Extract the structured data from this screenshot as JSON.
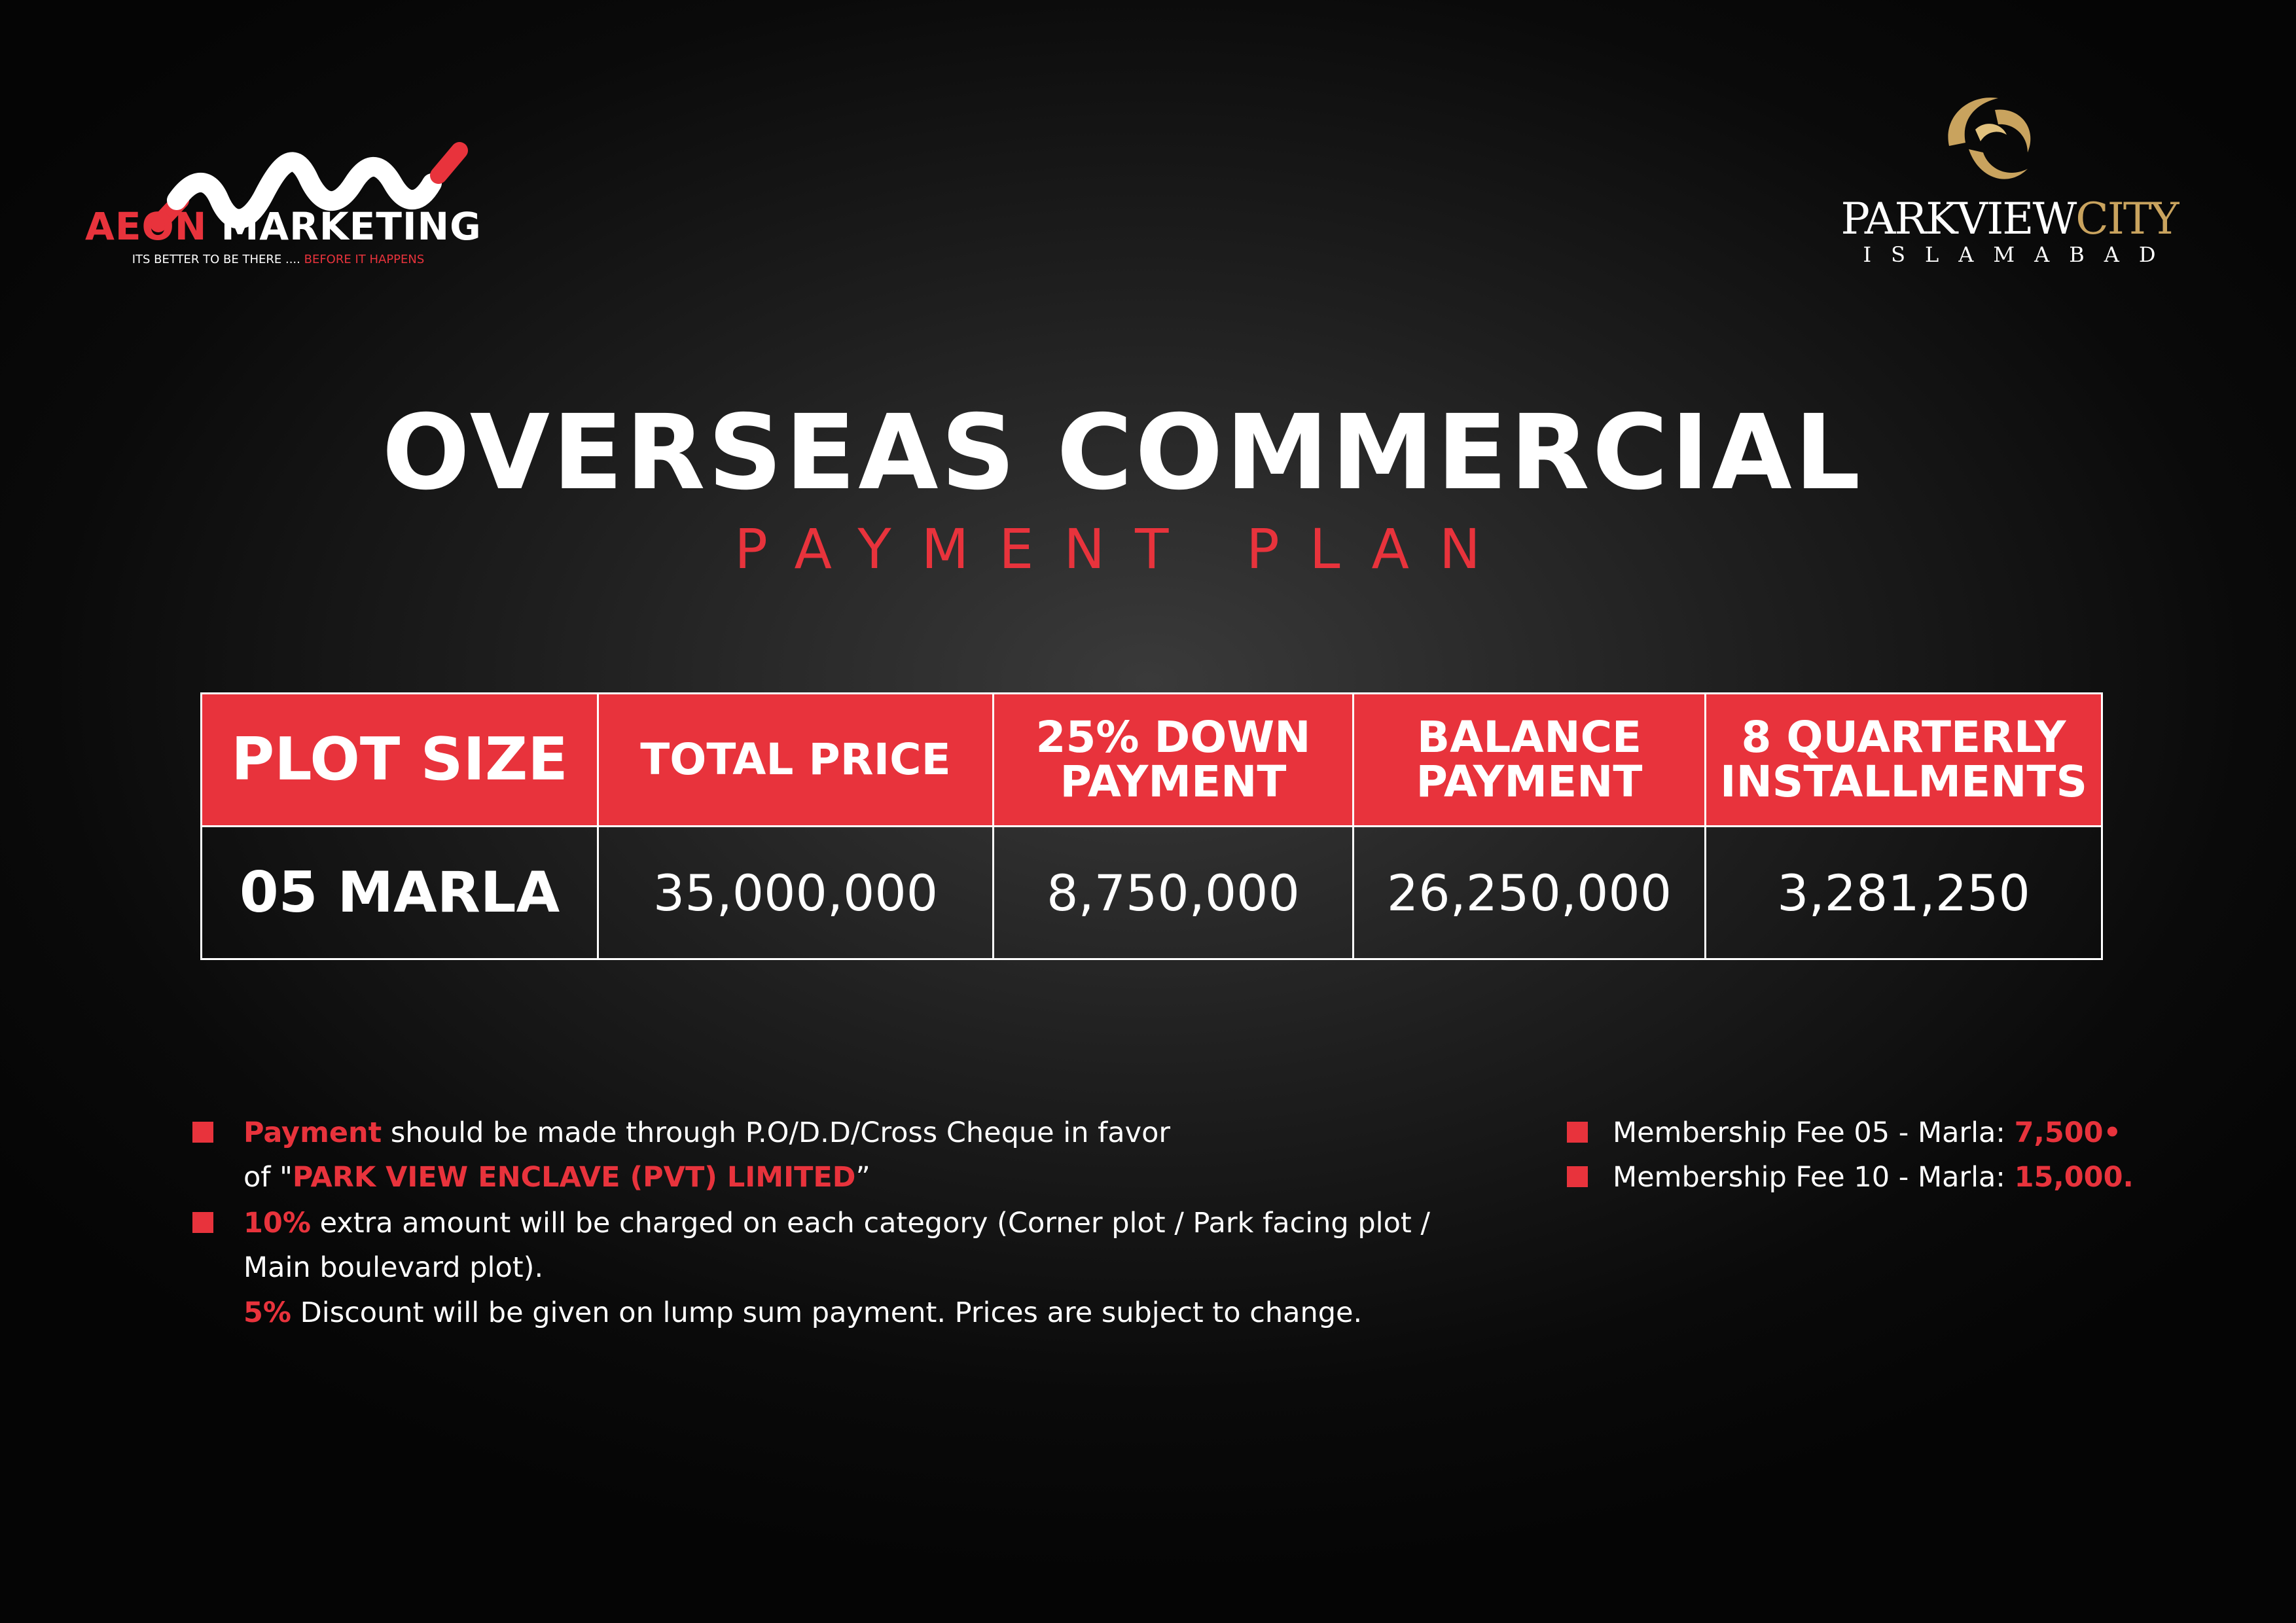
{
  "brand_left": {
    "name_part1": "AEON",
    "name_part2": "MARKETING",
    "tagline_part1": "ITS BETTER TO BE THERE .... ",
    "tagline_part2": "BEFORE IT HAPPENS",
    "colors": {
      "accent": "#e8333c",
      "text": "#ffffff"
    }
  },
  "brand_right": {
    "name_part1": "PARKVIEW",
    "name_part2": "CITY",
    "city": "ISLAMABAD",
    "colors": {
      "gold": "#c9a35e",
      "text": "#ffffff"
    }
  },
  "heading": {
    "title": "OVERSEAS COMMERCIAL",
    "subtitle": "PAYMENT PLAN"
  },
  "table": {
    "headers": [
      [
        "PLOT SIZE"
      ],
      [
        "TOTAL PRICE"
      ],
      [
        "25% DOWN",
        "PAYMENT"
      ],
      [
        "BALANCE",
        "PAYMENT"
      ],
      [
        "8 QUARTERLY",
        "INSTALLMENTS"
      ]
    ],
    "row": [
      "05 MARLA",
      "35,000,000",
      "8,750,000",
      "26,250,000",
      "3,281,250"
    ]
  },
  "notes": {
    "n1_red": "Payment",
    "n1_text": " should be made through P.O/D.D/Cross Cheque in favor",
    "n1b_pre": "of \"",
    "n1b_red": "PARK VIEW ENCLAVE (PVT) LIMITED",
    "n1b_post": "”",
    "n2_red": "10%",
    "n2_text": " extra amount will be charged on each category (Corner plot / Park facing plot /",
    "n2b_text": "Main boulevard plot).",
    "n3_red": "5%",
    "n3_text": " Discount will be given on lump sum payment. Prices are subject to change.",
    "m1_text": "Membership Fee 05 - Marla: ",
    "m1_red": "7,500•",
    "m2_text": "Membership Fee 10 - Marla: ",
    "m2_red": "15,000."
  },
  "colors": {
    "accent_red": "#e8333c",
    "background": "#0a0a0a"
  }
}
